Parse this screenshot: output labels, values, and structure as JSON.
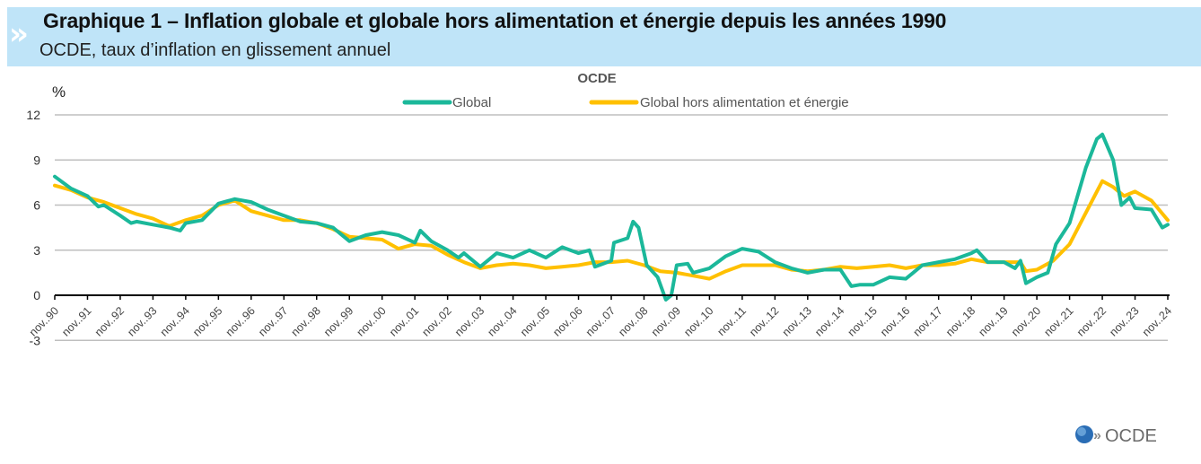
{
  "header": {
    "title": "Graphique 1 – Inflation globale et globale hors alimentation et énergie depuis les années 1990",
    "subtitle": "OCDE, taux d’inflation en glissement annuel",
    "icon": "double-chevron-icon"
  },
  "logo": {
    "text": "OCDE"
  },
  "chart_data": {
    "type": "line",
    "title": "OCDE",
    "ylabel": "%",
    "xlabel": "",
    "ylim": [
      -3,
      12
    ],
    "yticks": [
      "-3",
      "0",
      "3",
      "6",
      "9",
      "12"
    ],
    "xticks": [
      "nov..90",
      "nov..91",
      "nov..92",
      "nov..93",
      "nov..94",
      "nov..95",
      "nov..96",
      "nov..97",
      "nov..98",
      "nov..99",
      "nov..00",
      "nov..01",
      "nov..02",
      "nov..03",
      "nov..04",
      "nov..05",
      "nov..06",
      "nov..07",
      "nov..08",
      "nov..09",
      "nov..10",
      "nov..11",
      "nov..12",
      "nov..13",
      "nov..14",
      "nov..15",
      "nov..16",
      "nov..17",
      "nov..18",
      "nov..19",
      "nov..20",
      "nov..21",
      "nov..22",
      "nov..23",
      "nov..24"
    ],
    "xlim": [
      "1990-11",
      "2024-11"
    ],
    "grid": true,
    "legend": "top-center",
    "series": [
      {
        "name": "Global",
        "color": "#1bb89a",
        "points": [
          [
            "1990-11",
            7.9
          ],
          [
            "1991-05",
            7.1
          ],
          [
            "1991-11",
            6.6
          ],
          [
            "1992-03",
            5.9
          ],
          [
            "1992-05",
            6.0
          ],
          [
            "1992-11",
            5.3
          ],
          [
            "1993-03",
            4.8
          ],
          [
            "1993-05",
            4.9
          ],
          [
            "1993-11",
            4.7
          ],
          [
            "1994-05",
            4.5
          ],
          [
            "1994-09",
            4.3
          ],
          [
            "1994-11",
            4.8
          ],
          [
            "1995-05",
            5.0
          ],
          [
            "1995-11",
            6.1
          ],
          [
            "1996-05",
            6.4
          ],
          [
            "1996-11",
            6.2
          ],
          [
            "1997-05",
            5.7
          ],
          [
            "1997-11",
            5.3
          ],
          [
            "1998-05",
            4.9
          ],
          [
            "1998-11",
            4.8
          ],
          [
            "1999-05",
            4.5
          ],
          [
            "1999-11",
            3.6
          ],
          [
            "2000-05",
            4.0
          ],
          [
            "2000-11",
            4.2
          ],
          [
            "2001-05",
            4.0
          ],
          [
            "2001-11",
            3.5
          ],
          [
            "2002-01",
            4.3
          ],
          [
            "2002-05",
            3.6
          ],
          [
            "2002-11",
            3.0
          ],
          [
            "2003-03",
            2.5
          ],
          [
            "2003-05",
            2.8
          ],
          [
            "2003-11",
            1.9
          ],
          [
            "2004-05",
            2.8
          ],
          [
            "2004-11",
            2.5
          ],
          [
            "2005-05",
            3.0
          ],
          [
            "2005-11",
            2.5
          ],
          [
            "2006-05",
            3.2
          ],
          [
            "2006-11",
            2.8
          ],
          [
            "2007-03",
            3.0
          ],
          [
            "2007-05",
            1.9
          ],
          [
            "2007-11",
            2.3
          ],
          [
            "2007-12",
            3.5
          ],
          [
            "2008-05",
            3.8
          ],
          [
            "2008-07",
            4.9
          ],
          [
            "2008-09",
            4.5
          ],
          [
            "2008-12",
            2.0
          ],
          [
            "2009-04",
            1.2
          ],
          [
            "2009-07",
            -0.3
          ],
          [
            "2009-09",
            0.0
          ],
          [
            "2009-11",
            2.0
          ],
          [
            "2010-03",
            2.1
          ],
          [
            "2010-05",
            1.5
          ],
          [
            "2010-11",
            1.8
          ],
          [
            "2011-05",
            2.6
          ],
          [
            "2011-11",
            3.1
          ],
          [
            "2012-05",
            2.9
          ],
          [
            "2012-11",
            2.2
          ],
          [
            "2013-05",
            1.8
          ],
          [
            "2013-11",
            1.5
          ],
          [
            "2014-05",
            1.7
          ],
          [
            "2014-11",
            1.7
          ],
          [
            "2015-03",
            0.6
          ],
          [
            "2015-06",
            0.7
          ],
          [
            "2015-11",
            0.7
          ],
          [
            "2016-05",
            1.2
          ],
          [
            "2016-11",
            1.1
          ],
          [
            "2017-05",
            2.0
          ],
          [
            "2017-11",
            2.2
          ],
          [
            "2018-05",
            2.4
          ],
          [
            "2018-11",
            2.8
          ],
          [
            "2019-01",
            3.0
          ],
          [
            "2019-05",
            2.2
          ],
          [
            "2019-11",
            2.2
          ],
          [
            "2020-03",
            1.8
          ],
          [
            "2020-05",
            2.3
          ],
          [
            "2020-07",
            0.8
          ],
          [
            "2020-11",
            1.2
          ],
          [
            "2021-03",
            1.5
          ],
          [
            "2021-06",
            3.4
          ],
          [
            "2021-11",
            4.8
          ],
          [
            "2022-05",
            8.5
          ],
          [
            "2022-09",
            10.4
          ],
          [
            "2022-11",
            10.7
          ],
          [
            "2023-03",
            9.0
          ],
          [
            "2023-06",
            6.0
          ],
          [
            "2023-09",
            6.5
          ],
          [
            "2023-11",
            5.8
          ],
          [
            "2024-05",
            5.7
          ],
          [
            "2024-09",
            4.5
          ],
          [
            "2024-11",
            4.7
          ]
        ]
      },
      {
        "name": "Global hors alimentation et énergie",
        "color": "#ffc000",
        "points": [
          [
            "1990-11",
            7.3
          ],
          [
            "1991-05",
            7.0
          ],
          [
            "1991-11",
            6.5
          ],
          [
            "1992-05",
            6.2
          ],
          [
            "1992-11",
            5.8
          ],
          [
            "1993-05",
            5.4
          ],
          [
            "1993-11",
            5.1
          ],
          [
            "1994-05",
            4.6
          ],
          [
            "1994-11",
            5.0
          ],
          [
            "1995-05",
            5.3
          ],
          [
            "1995-11",
            6.0
          ],
          [
            "1996-05",
            6.3
          ],
          [
            "1996-11",
            5.6
          ],
          [
            "1997-05",
            5.3
          ],
          [
            "1997-11",
            5.0
          ],
          [
            "1998-05",
            5.0
          ],
          [
            "1998-11",
            4.8
          ],
          [
            "1999-05",
            4.4
          ],
          [
            "1999-11",
            3.9
          ],
          [
            "2000-05",
            3.8
          ],
          [
            "2000-11",
            3.7
          ],
          [
            "2001-05",
            3.1
          ],
          [
            "2001-11",
            3.4
          ],
          [
            "2002-05",
            3.3
          ],
          [
            "2002-11",
            2.7
          ],
          [
            "2003-05",
            2.2
          ],
          [
            "2003-11",
            1.8
          ],
          [
            "2004-05",
            2.0
          ],
          [
            "2004-11",
            2.1
          ],
          [
            "2005-05",
            2.0
          ],
          [
            "2005-11",
            1.8
          ],
          [
            "2006-05",
            1.9
          ],
          [
            "2006-11",
            2.0
          ],
          [
            "2007-05",
            2.2
          ],
          [
            "2007-11",
            2.2
          ],
          [
            "2008-05",
            2.3
          ],
          [
            "2008-11",
            2.0
          ],
          [
            "2009-05",
            1.6
          ],
          [
            "2009-11",
            1.5
          ],
          [
            "2010-05",
            1.3
          ],
          [
            "2010-11",
            1.1
          ],
          [
            "2011-05",
            1.6
          ],
          [
            "2011-11",
            2.0
          ],
          [
            "2012-05",
            2.0
          ],
          [
            "2012-11",
            2.0
          ],
          [
            "2013-05",
            1.7
          ],
          [
            "2013-11",
            1.6
          ],
          [
            "2014-05",
            1.7
          ],
          [
            "2014-11",
            1.9
          ],
          [
            "2015-05",
            1.8
          ],
          [
            "2015-11",
            1.9
          ],
          [
            "2016-05",
            2.0
          ],
          [
            "2016-11",
            1.8
          ],
          [
            "2017-05",
            2.0
          ],
          [
            "2017-11",
            2.0
          ],
          [
            "2018-05",
            2.1
          ],
          [
            "2018-11",
            2.4
          ],
          [
            "2019-05",
            2.2
          ],
          [
            "2019-11",
            2.2
          ],
          [
            "2020-05",
            2.2
          ],
          [
            "2020-07",
            1.6
          ],
          [
            "2020-11",
            1.7
          ],
          [
            "2021-05",
            2.3
          ],
          [
            "2021-11",
            3.4
          ],
          [
            "2022-05",
            5.5
          ],
          [
            "2022-11",
            7.6
          ],
          [
            "2023-03",
            7.2
          ],
          [
            "2023-07",
            6.6
          ],
          [
            "2023-11",
            6.9
          ],
          [
            "2024-05",
            6.3
          ],
          [
            "2024-11",
            5.0
          ]
        ]
      }
    ]
  }
}
